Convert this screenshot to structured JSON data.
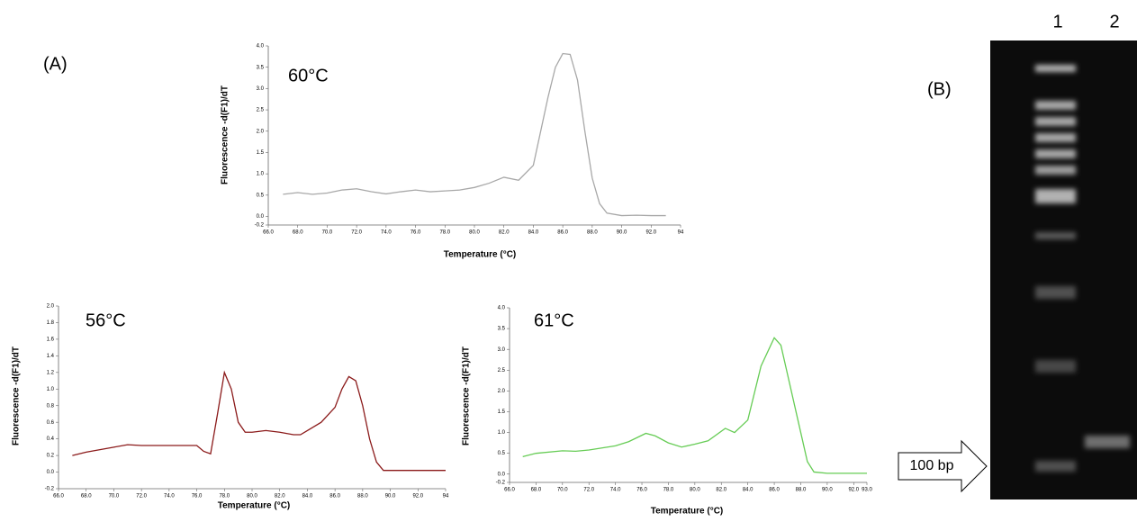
{
  "chart_data": [
    {
      "type": "line",
      "annotation": "60°C",
      "x_label": "Temperature (°C)",
      "y_label": "Fluorescence -d(F1)/dT",
      "color": "#a8a8a8",
      "x": [
        67,
        68,
        69,
        70,
        71,
        72,
        73,
        74,
        75,
        76,
        77,
        78,
        79,
        80,
        81,
        82,
        83,
        84,
        85,
        85.5,
        86,
        86.5,
        87,
        87.5,
        88,
        88.5,
        89,
        90,
        91,
        92,
        93
      ],
      "values": [
        0.52,
        0.56,
        0.52,
        0.55,
        0.62,
        0.65,
        0.58,
        0.53,
        0.58,
        0.62,
        0.58,
        0.6,
        0.62,
        0.68,
        0.78,
        0.92,
        0.85,
        1.2,
        2.8,
        3.5,
        3.82,
        3.8,
        3.2,
        2.0,
        0.9,
        0.3,
        0.08,
        0.02,
        0.03,
        0.02,
        0.02
      ],
      "xlim": [
        66,
        94
      ],
      "xticks": [
        {
          "value": 66,
          "label": "66.0"
        },
        {
          "value": 68,
          "label": "68.0"
        },
        {
          "value": 70,
          "label": "70.0"
        },
        {
          "value": 72,
          "label": "72.0"
        },
        {
          "value": 74,
          "label": "74.0"
        },
        {
          "value": 76,
          "label": "76.0"
        },
        {
          "value": 78,
          "label": "78.0"
        },
        {
          "value": 80,
          "label": "80.0"
        },
        {
          "value": 82,
          "label": "82.0"
        },
        {
          "value": 84,
          "label": "84.0"
        },
        {
          "value": 86,
          "label": "86.0"
        },
        {
          "value": 88,
          "label": "88.0"
        },
        {
          "value": 90,
          "label": "90.0"
        },
        {
          "value": 92,
          "label": "92.0"
        },
        94
      ],
      "ylim": [
        -0.2,
        4.0
      ],
      "yticks": [
        -0.2,
        {
          "value": 0,
          "label": "0.0"
        },
        0.5,
        {
          "value": 1,
          "label": "1.0"
        },
        1.5,
        {
          "value": 2,
          "label": "2.0"
        },
        2.5,
        {
          "value": 3,
          "label": "3.0"
        },
        3.5,
        {
          "value": 4,
          "label": "4.0"
        }
      ]
    },
    {
      "type": "line",
      "annotation": "56°C",
      "x_label": "Temperature (°C)",
      "y_label": "Fluorescence -d(F1)/dT",
      "color": "#8b1a1a",
      "x": [
        67,
        68,
        69,
        70,
        71,
        72,
        73,
        74,
        75,
        76,
        76.5,
        77,
        77.5,
        78,
        78.5,
        79,
        79.5,
        80,
        81,
        82,
        83,
        83.5,
        84,
        85,
        86,
        86.5,
        87,
        87.5,
        88,
        88.5,
        89,
        89.5,
        90,
        92,
        94
      ],
      "values": [
        0.2,
        0.24,
        0.27,
        0.3,
        0.33,
        0.32,
        0.32,
        0.32,
        0.32,
        0.32,
        0.25,
        0.22,
        0.7,
        1.2,
        1.0,
        0.6,
        0.48,
        0.48,
        0.5,
        0.48,
        0.45,
        0.45,
        0.5,
        0.6,
        0.78,
        1.0,
        1.15,
        1.1,
        0.8,
        0.4,
        0.12,
        0.02,
        0.02,
        0.02,
        0.02
      ],
      "xlim": [
        66,
        94
      ],
      "xticks": [
        {
          "value": 66,
          "label": "66.0"
        },
        {
          "value": 68,
          "label": "68.0"
        },
        {
          "value": 70,
          "label": "70.0"
        },
        {
          "value": 72,
          "label": "72.0"
        },
        {
          "value": 74,
          "label": "74.0"
        },
        {
          "value": 76,
          "label": "76.0"
        },
        {
          "value": 78,
          "label": "78.0"
        },
        {
          "value": 80,
          "label": "80.0"
        },
        {
          "value": 82,
          "label": "82.0"
        },
        {
          "value": 84,
          "label": "84.0"
        },
        {
          "value": 86,
          "label": "86.0"
        },
        {
          "value": 88,
          "label": "88.0"
        },
        {
          "value": 90,
          "label": "90.0"
        },
        {
          "value": 92,
          "label": "92.0"
        },
        94
      ],
      "ylim": [
        -0.2,
        2.0
      ],
      "yticks": [
        -0.2,
        {
          "value": 0,
          "label": "0.0"
        },
        0.2,
        0.4,
        0.6,
        0.8,
        {
          "value": 1,
          "label": "1.0"
        },
        1.2,
        1.4,
        1.6,
        1.8,
        {
          "value": 2,
          "label": "2.0"
        }
      ]
    },
    {
      "type": "line",
      "annotation": "61°C",
      "x_label": "Temperature (°C)",
      "y_label": "Fluorescence -d(F1)/dT",
      "color": "#66cc55",
      "x": [
        67,
        68,
        70,
        71,
        72,
        74,
        75,
        76.3,
        77,
        78,
        79,
        80,
        81,
        82.3,
        83,
        84,
        85,
        86,
        86.5,
        87,
        88,
        88.5,
        89,
        90,
        93
      ],
      "values": [
        0.42,
        0.5,
        0.56,
        0.55,
        0.58,
        0.68,
        0.78,
        0.98,
        0.92,
        0.75,
        0.65,
        0.72,
        0.8,
        1.1,
        1.0,
        1.3,
        2.6,
        3.28,
        3.1,
        2.4,
        1.0,
        0.3,
        0.05,
        0.02,
        0.02
      ],
      "xlim": [
        66,
        93
      ],
      "xticks": [
        {
          "value": 66,
          "label": "66.0"
        },
        {
          "value": 68,
          "label": "68.0"
        },
        {
          "value": 70,
          "label": "70.0"
        },
        {
          "value": 72,
          "label": "72.0"
        },
        {
          "value": 74,
          "label": "74.0"
        },
        {
          "value": 76,
          "label": "76.0"
        },
        {
          "value": 78,
          "label": "78.0"
        },
        {
          "value": 80,
          "label": "80.0"
        },
        {
          "value": 82,
          "label": "82.0"
        },
        {
          "value": 84,
          "label": "84.0"
        },
        {
          "value": 86,
          "label": "86.0"
        },
        {
          "value": 88,
          "label": "88.0"
        },
        {
          "value": 90,
          "label": "90.0"
        },
        {
          "value": 92,
          "label": "92.0"
        },
        {
          "value": 93,
          "label": "93.0"
        }
      ],
      "ylim": [
        -0.2,
        4.0
      ],
      "yticks": [
        -0.2,
        {
          "value": 0,
          "label": "0.0"
        },
        0.5,
        {
          "value": 1,
          "label": "1.0"
        },
        1.5,
        {
          "value": 2,
          "label": "2.0"
        },
        2.5,
        {
          "value": 3,
          "label": "3.0"
        },
        3.5,
        {
          "value": 4,
          "label": "4.0"
        }
      ]
    }
  ],
  "panel_labels": [
    "(A)",
    "(B)"
  ],
  "gel": {
    "lanes": [
      "1",
      "2"
    ],
    "marker": "100 bp"
  }
}
